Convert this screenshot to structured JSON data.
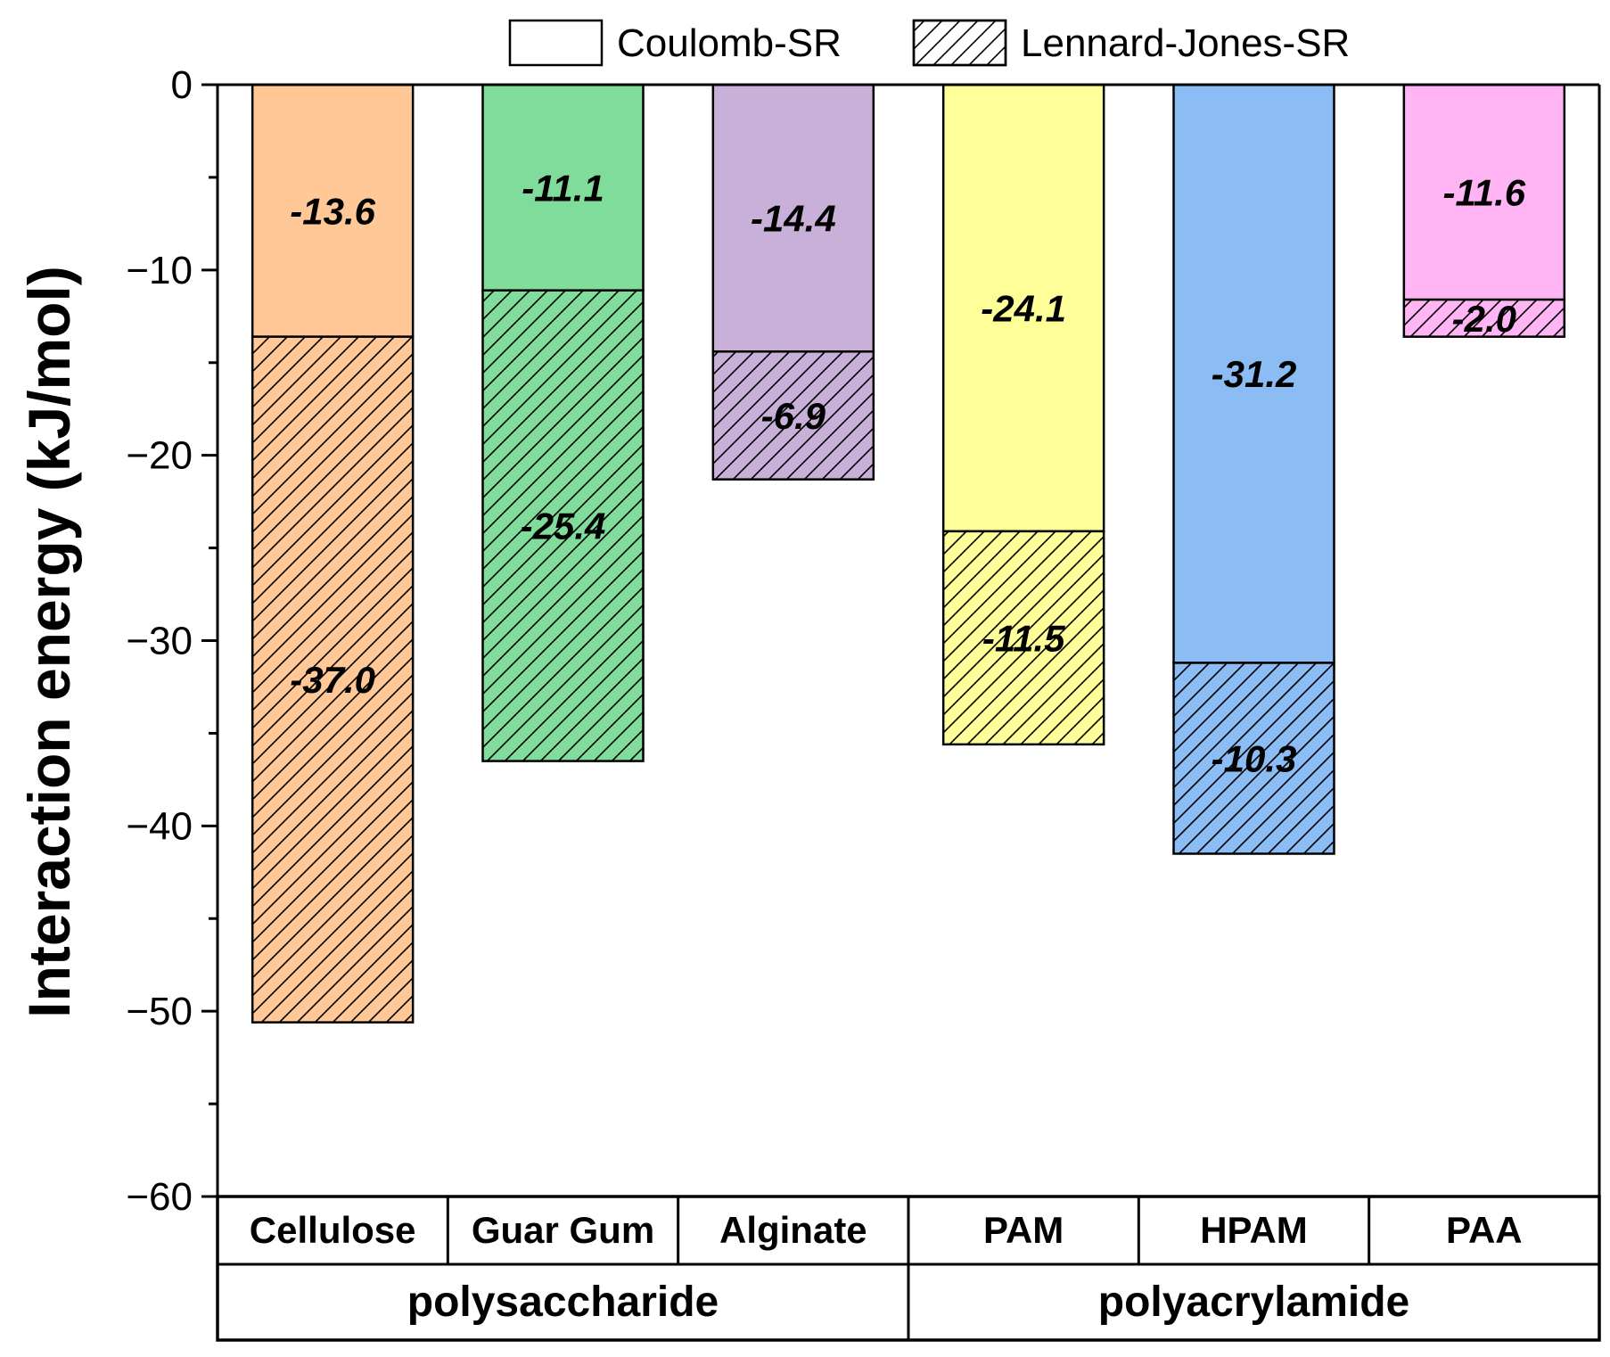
{
  "chart_data": {
    "type": "bar",
    "stacked": true,
    "title": "",
    "xlabel": "",
    "ylabel": "Interaction energy (kJ/mol)",
    "ylim": [
      -60,
      0
    ],
    "yticks": [
      0,
      -10,
      -20,
      -30,
      -40,
      -50,
      -60
    ],
    "ytick_labels": [
      "0",
      "−10",
      "−20",
      "−30",
      "−40",
      "−50",
      "−60"
    ],
    "grid": false,
    "legend_position": "top",
    "categories": [
      "Cellulose",
      "Guar Gum",
      "Alginate",
      "PAM",
      "HPAM",
      "PAA"
    ],
    "colors": [
      "#FFC896",
      "#80DC9A",
      "#C8B0D8",
      "#FFFF99",
      "#8CBCF4",
      "#FFB4F4"
    ],
    "groups": [
      {
        "name": "polysaccharide",
        "categories": [
          "Cellulose",
          "Guar Gum",
          "Alginate"
        ]
      },
      {
        "name": "polyacrylamide",
        "categories": [
          "PAM",
          "HPAM",
          "PAA"
        ]
      }
    ],
    "series": [
      {
        "name": "Coulomb-SR",
        "pattern": "solid",
        "values": [
          -13.6,
          -11.1,
          -14.4,
          -24.1,
          -31.2,
          -11.6
        ],
        "labels": [
          "-13.6",
          "-11.1",
          "-14.4",
          "-24.1",
          "-31.2",
          "-11.6"
        ]
      },
      {
        "name": "Lennard-Jones-SR",
        "pattern": "hatch",
        "values": [
          -37.0,
          -25.4,
          -6.9,
          -11.5,
          -10.3,
          -2.0
        ],
        "labels": [
          "-37.0",
          "-25.4",
          "-6.9",
          "-11.5",
          "-10.3",
          "-2.0"
        ]
      }
    ]
  }
}
